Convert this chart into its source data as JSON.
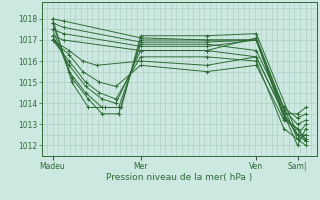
{
  "title": "",
  "xlabel": "Pression niveau de la mer( hPa )",
  "bg_color": "#cce8e0",
  "grid_color": "#aaccbf",
  "line_color": "#2d6b35",
  "ylim": [
    1011.5,
    1018.8
  ],
  "yticks": [
    1012,
    1013,
    1014,
    1015,
    1016,
    1017,
    1018
  ],
  "xtick_labels": [
    "Madeu",
    "Mer",
    "Ven",
    "Sam|"
  ],
  "xtick_positions": [
    0.04,
    0.36,
    0.78,
    0.93
  ],
  "lines": [
    {
      "x": [
        0.04,
        0.08,
        0.36,
        0.6,
        0.78,
        0.88,
        0.93,
        0.96
      ],
      "y": [
        1018.0,
        1017.9,
        1017.1,
        1017.0,
        1017.0,
        1013.3,
        1012.8,
        1012.2
      ]
    },
    {
      "x": [
        0.04,
        0.08,
        0.36,
        0.6,
        0.78,
        0.88,
        0.93,
        0.96
      ],
      "y": [
        1017.8,
        1017.6,
        1016.9,
        1016.9,
        1017.0,
        1013.5,
        1012.5,
        1012.5
      ]
    },
    {
      "x": [
        0.04,
        0.08,
        0.36,
        0.6,
        0.78,
        0.88,
        0.93,
        0.96
      ],
      "y": [
        1017.5,
        1017.3,
        1016.7,
        1016.7,
        1017.0,
        1013.7,
        1013.0,
        1013.2
      ]
    },
    {
      "x": [
        0.04,
        0.08,
        0.36,
        0.6,
        0.78,
        0.88,
        0.93,
        0.96
      ],
      "y": [
        1017.2,
        1017.0,
        1016.5,
        1016.5,
        1017.1,
        1013.8,
        1013.3,
        1013.5
      ]
    },
    {
      "x": [
        0.04,
        0.1,
        0.15,
        0.2,
        0.36,
        0.6,
        0.78,
        0.88,
        0.93,
        0.96
      ],
      "y": [
        1017.0,
        1016.5,
        1016.0,
        1015.8,
        1016.0,
        1015.8,
        1016.2,
        1013.5,
        1013.5,
        1013.8
      ]
    },
    {
      "x": [
        0.04,
        0.1,
        0.15,
        0.21,
        0.27,
        0.36,
        0.6,
        0.78,
        0.88,
        0.93,
        0.96
      ],
      "y": [
        1017.0,
        1016.3,
        1015.5,
        1015.0,
        1014.8,
        1015.8,
        1015.5,
        1015.8,
        1013.2,
        1012.8,
        1012.3
      ]
    },
    {
      "x": [
        0.04,
        0.1,
        0.16,
        0.21,
        0.27,
        0.36,
        0.6,
        0.78,
        0.88,
        0.93,
        0.96
      ],
      "y": [
        1017.0,
        1016.0,
        1015.0,
        1014.5,
        1014.2,
        1016.2,
        1016.2,
        1016.0,
        1012.8,
        1012.3,
        1012.0
      ]
    },
    {
      "x": [
        0.04,
        0.1,
        0.16,
        0.22,
        0.27,
        0.36,
        0.6,
        0.78,
        0.88,
        0.93,
        0.96
      ],
      "y": [
        1017.2,
        1015.8,
        1014.8,
        1014.2,
        1014.0,
        1016.5,
        1016.5,
        1016.2,
        1013.5,
        1012.5,
        1012.2
      ]
    },
    {
      "x": [
        0.04,
        0.1,
        0.16,
        0.22,
        0.28,
        0.36,
        0.6,
        0.78,
        0.88,
        0.93,
        0.96
      ],
      "y": [
        1017.5,
        1015.5,
        1014.5,
        1013.8,
        1013.8,
        1016.8,
        1016.8,
        1016.5,
        1013.8,
        1012.3,
        1012.5
      ]
    },
    {
      "x": [
        0.04,
        0.11,
        0.17,
        0.22,
        0.28,
        0.36,
        0.6,
        0.78,
        0.88,
        0.93,
        0.96
      ],
      "y": [
        1017.8,
        1015.2,
        1014.2,
        1013.5,
        1013.5,
        1017.0,
        1017.0,
        1017.0,
        1013.5,
        1012.0,
        1012.8
      ]
    },
    {
      "x": [
        0.04,
        0.11,
        0.17,
        0.23,
        0.29,
        0.36,
        0.6,
        0.78,
        0.93,
        0.96
      ],
      "y": [
        1018.0,
        1015.0,
        1013.8,
        1013.8,
        1013.8,
        1017.2,
        1017.2,
        1017.3,
        1012.5,
        1013.0
      ]
    }
  ]
}
